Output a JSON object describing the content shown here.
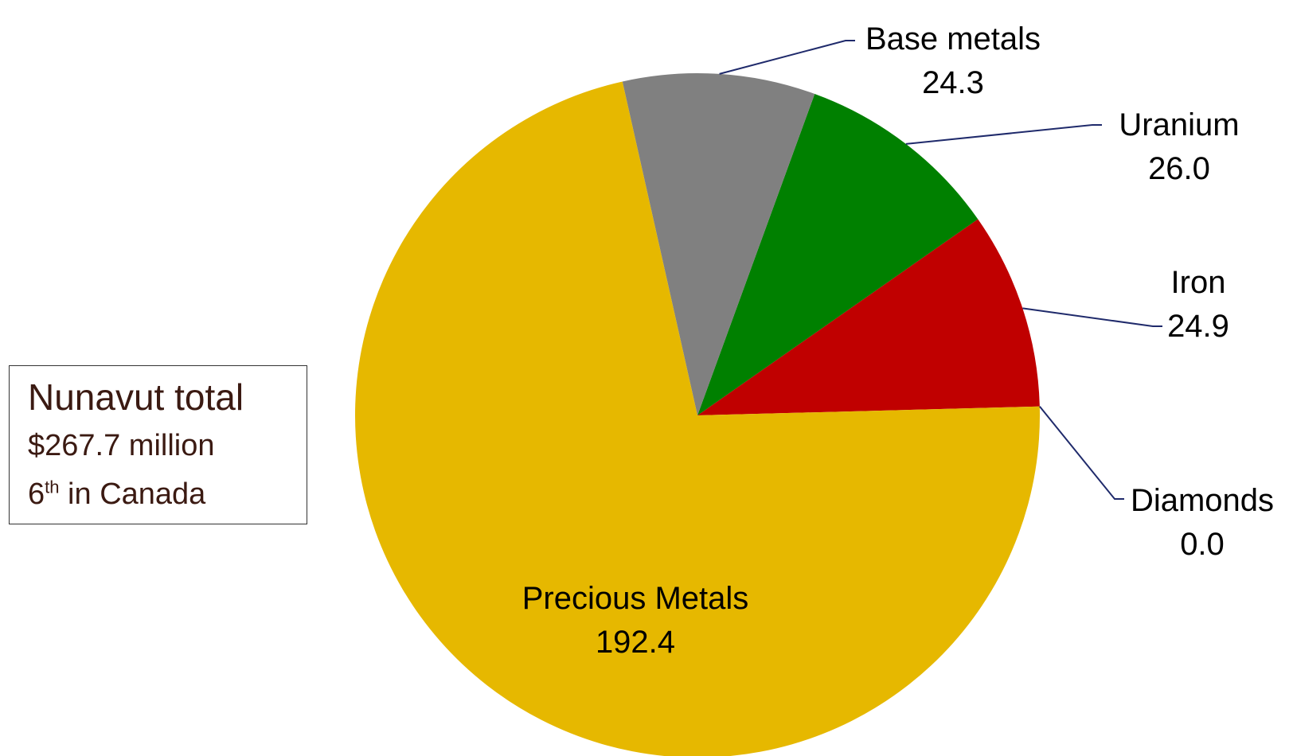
{
  "chart_data": {
    "type": "pie",
    "series": [
      {
        "name": "Diamonds",
        "value": 0.0,
        "label_value": "0.0",
        "color": "#ffffff"
      },
      {
        "name": "Iron",
        "value": 24.9,
        "label_value": "24.9",
        "color": "#c00000"
      },
      {
        "name": "Uranium",
        "value": 26.0,
        "label_value": "26.0",
        "color": "#008000"
      },
      {
        "name": "Base metals",
        "value": 24.3,
        "label_value": "24.3",
        "color": "#808080"
      },
      {
        "name": "Precious Metals",
        "value": 192.4,
        "label_value": "192.4",
        "color": "#e6b800"
      }
    ],
    "start_angle_deg": 1.5,
    "direction": "counterclockwise",
    "leader_line_color": "#1f2a6b"
  },
  "summary": {
    "title": "Nunavut total",
    "value": "$267.7 million",
    "rank_number": "6",
    "rank_suffix": "th",
    "rank_text": " in Canada"
  }
}
